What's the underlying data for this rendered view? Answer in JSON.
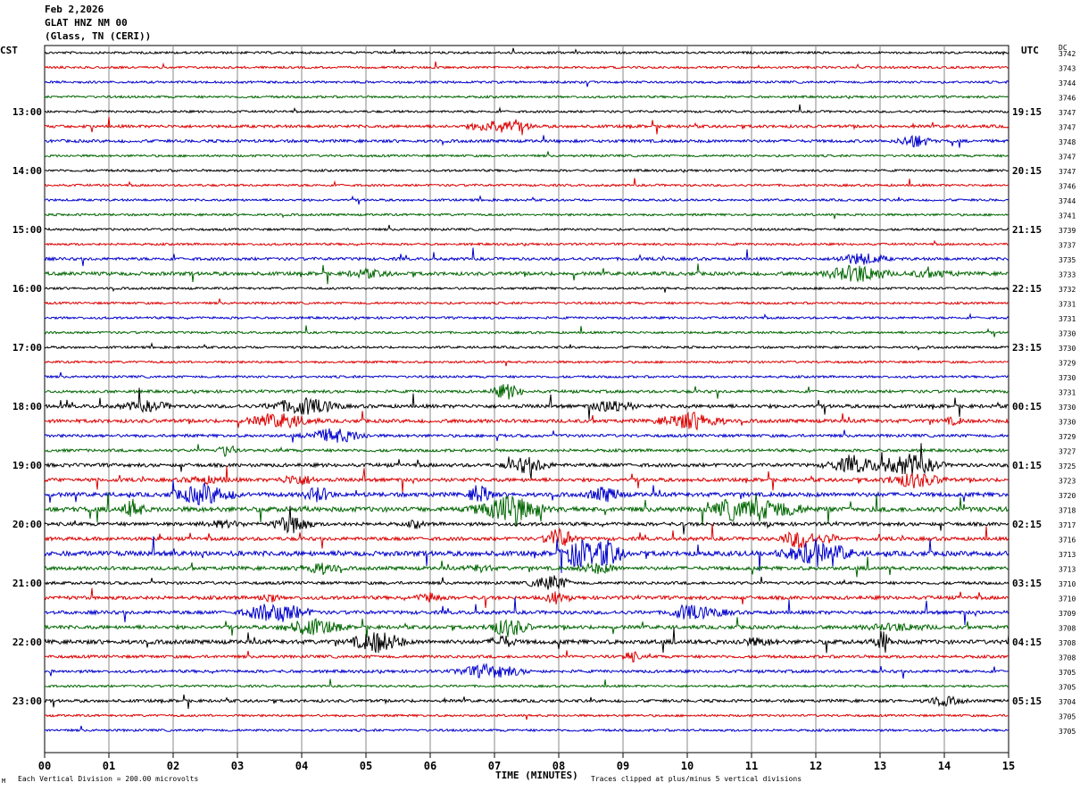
{
  "header": {
    "date": "Feb 2,2026",
    "station": "GLAT HNZ NM 00",
    "location": "(Glass, TN (CERI))"
  },
  "left_timezone": "CST",
  "right_timezone": "UTC",
  "dc_label": "DC",
  "footer": {
    "scale": "Each Vertical Division =  200.00 microvolts",
    "clip_note": "Traces clipped at plus/minus 5 vertical divisions",
    "mark": "M"
  },
  "chart_data": {
    "type": "helicorder",
    "xlabel": "TIME (MINUTES)",
    "x_ticks": [
      "00",
      "01",
      "02",
      "03",
      "04",
      "05",
      "06",
      "07",
      "08",
      "09",
      "10",
      "11",
      "12",
      "13",
      "14",
      "15"
    ],
    "xlim": [
      0,
      15
    ],
    "trace_colors": [
      "#000000",
      "#dd0000",
      "#0000cc",
      "#006600"
    ],
    "left_hour_labels": [
      "13:00",
      "14:00",
      "15:00",
      "16:00",
      "17:00",
      "18:00",
      "19:00",
      "20:00",
      "21:00",
      "22:00",
      "23:00"
    ],
    "right_hour_labels": [
      "19:15",
      "20:15",
      "21:15",
      "22:15",
      "23:15",
      "00:15",
      "01:15",
      "02:15",
      "03:15",
      "04:15",
      "05:15"
    ],
    "hour_label_first_row": 4,
    "dc_values": [
      "3742",
      "3743",
      "3744",
      "3746",
      "3747",
      "3747",
      "3748",
      "3747",
      "3747",
      "3746",
      "3744",
      "3741",
      "3739",
      "3737",
      "3735",
      "3733",
      "3732",
      "3731",
      "3731",
      "3730",
      "3730",
      "3729",
      "3730",
      "3731",
      "3730",
      "3730",
      "3729",
      "3727",
      "3725",
      "3723",
      "3720",
      "3718",
      "3717",
      "3716",
      "3713",
      "3713",
      "3710",
      "3710",
      "3709",
      "3708",
      "3708",
      "3708",
      "3705",
      "3705",
      "3704",
      "3705",
      "3705"
    ],
    "activity": [
      1,
      1,
      1,
      1,
      1,
      2,
      2,
      1,
      1,
      1,
      1,
      1,
      1,
      1,
      2,
      3,
      1,
      1,
      1,
      1,
      1,
      1,
      1,
      2,
      3,
      3,
      2,
      2,
      3,
      3,
      4,
      5,
      3,
      3,
      5,
      3,
      2,
      3,
      3,
      3,
      4,
      2,
      2,
      1,
      2,
      1,
      1
    ]
  }
}
